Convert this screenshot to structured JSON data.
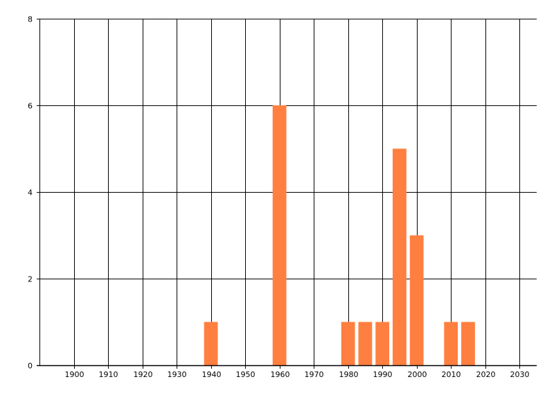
{
  "chart_data": {
    "type": "bar",
    "title": "",
    "xlabel": "",
    "ylabel": "",
    "x": [
      1940,
      1960,
      1980,
      1985,
      1990,
      1995,
      2000,
      2010,
      2015
    ],
    "values": [
      1,
      6,
      1,
      1,
      1,
      5,
      3,
      1,
      1
    ],
    "bar_width_years": 4,
    "xlim": [
      1890,
      2035
    ],
    "ylim": [
      0,
      8
    ],
    "xticks": [
      1900,
      1910,
      1920,
      1930,
      1940,
      1950,
      1960,
      1970,
      1980,
      1990,
      2000,
      2010,
      2020,
      2030
    ],
    "yticks": [
      0,
      2,
      4,
      6,
      8
    ],
    "grid": true,
    "bar_color": "#FF7F40",
    "grid_color": "#000000"
  }
}
